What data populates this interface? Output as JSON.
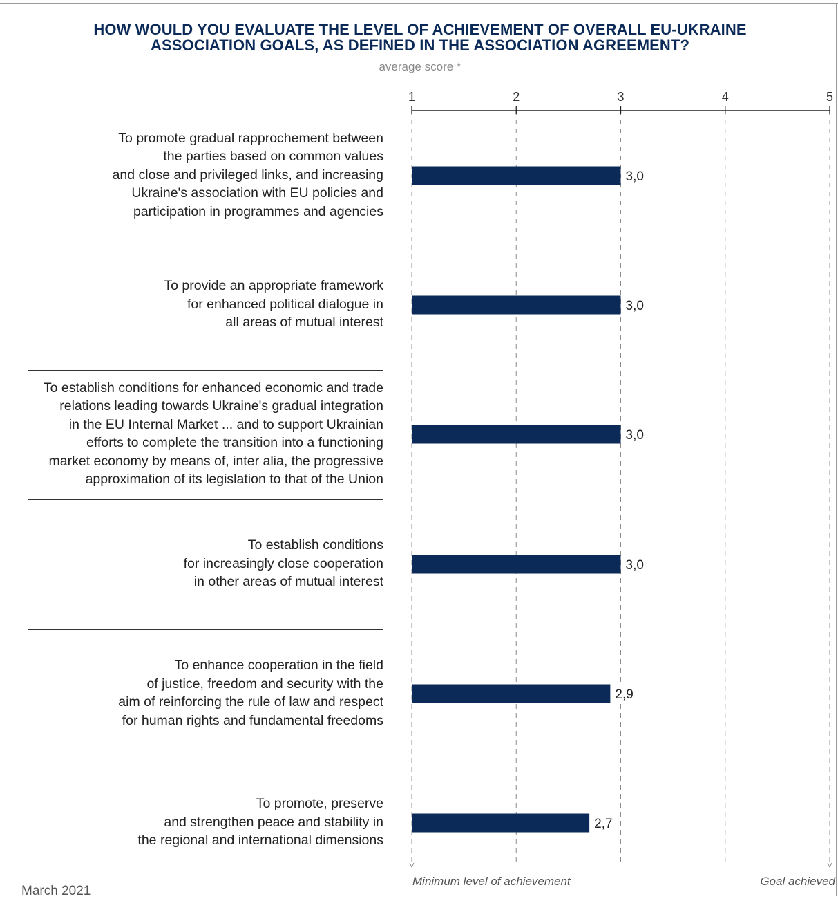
{
  "chart_data": {
    "type": "bar",
    "orientation": "horizontal",
    "title": "HOW WOULD YOU EVALUATE THE LEVEL OF ACHIEVEMENT OF OVERALL EU-UKRAINE ASSOCIATION GOALS, AS DEFINED IN THE ASSOCIATION AGREEMENT?",
    "subtitle": "average score *",
    "xlim": [
      1,
      5
    ],
    "x_ticks": [
      "1",
      "2",
      "3",
      "4",
      "5"
    ],
    "grid": true,
    "bar_color": "#0b2a57",
    "categories": [
      [
        "To promote gradual rapprochement between",
        "the parties based on common values",
        "and close and privileged links, and increasing",
        "Ukraine's association with EU policies and",
        "participation in programmes and agencies"
      ],
      [
        "To provide an appropriate framework",
        "for enhanced political dialogue in",
        "all areas of mutual interest"
      ],
      [
        "To establish conditions for enhanced economic and trade",
        "relations leading towards Ukraine's gradual integration",
        "in the EU Internal Market ... and to support Ukrainian",
        "efforts to complete the transition into a functioning",
        "market economy by means of, inter alia, the progressive",
        "approximation of its legislation to that of the Union"
      ],
      [
        "To establish conditions",
        "for increasingly close cooperation",
        "in other areas of mutual interest"
      ],
      [
        "To enhance cooperation in the field",
        "of justice, freedom and security with the",
        "aim of reinforcing the rule of law and respect",
        "for human rights and fundamental freedoms"
      ],
      [
        "To promote, preserve",
        "and strengthen peace and stability in",
        "the regional and international dimensions"
      ]
    ],
    "values": [
      3.0,
      3.0,
      3.0,
      3.0,
      2.9,
      2.7
    ],
    "value_labels": [
      "3,0",
      "3,0",
      "3,0",
      "3,0",
      "2,9",
      "2,7"
    ],
    "axis_end_labels": {
      "min": "Minimum level of achievement",
      "max": "Goal achieved"
    }
  },
  "footer": {
    "date": "March 2021"
  }
}
